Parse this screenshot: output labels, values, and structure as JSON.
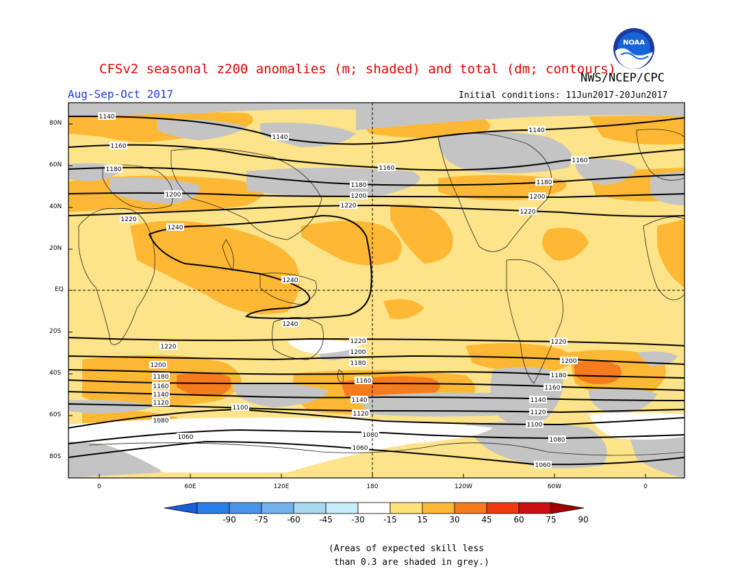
{
  "header": {
    "title": "CFSv2 seasonal z200 anomalies (m; shaded) and total (dm; contours)",
    "agency": "NWS/NCEP/CPC",
    "period": "Aug-Sep-Oct 2017",
    "initial_conditions": "Initial conditions: 11Jun2017-20Jun2017",
    "logo_text": "NOAA"
  },
  "axes": {
    "lat_labels": [
      "80N",
      "60N",
      "40N",
      "20N",
      "EQ",
      "20S",
      "40S",
      "60S",
      "80S"
    ],
    "lon_labels": [
      "0",
      "60E",
      "120E",
      "180",
      "120W",
      "60W",
      "0"
    ]
  },
  "colorbar": {
    "ticks": [
      "-90",
      "-75",
      "-60",
      "-45",
      "-30",
      "-15",
      "15",
      "30",
      "45",
      "60",
      "75",
      "90"
    ],
    "colors": [
      "#1a5fd6",
      "#2a7ee8",
      "#4a95ea",
      "#72b3ee",
      "#a8d7f0",
      "#c6eef8",
      "#ffffff",
      "#ffe37a",
      "#ffb833",
      "#f57c1e",
      "#f03a10",
      "#cc1010",
      "#a00000"
    ]
  },
  "contour_labels": [
    "1140",
    "1160",
    "1180",
    "1200",
    "1220",
    "1240",
    "1100",
    "1080",
    "1060",
    "1120"
  ],
  "legend_note": "(Areas of expected skill less\n than 0.3 are shaded in grey.)",
  "colors": {
    "title_red": "#e00000",
    "period_blue": "#1a3ae0",
    "skill_grey": "#c0c0c0",
    "anom_light": "#fde38a",
    "anom_mid": "#ffb833",
    "anom_strong": "#f57c1e"
  }
}
